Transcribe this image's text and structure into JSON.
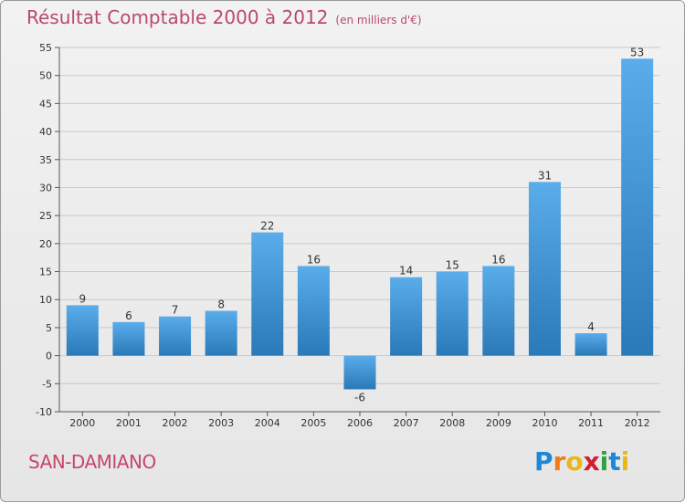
{
  "chart_data": {
    "type": "bar",
    "title": "Résultat Comptable 2000 à 2012",
    "subtitle": "(en milliers d'€)",
    "categories": [
      "2000",
      "2001",
      "2002",
      "2003",
      "2004",
      "2005",
      "2006",
      "2007",
      "2008",
      "2009",
      "2010",
      "2011",
      "2012"
    ],
    "values": [
      9,
      6,
      7,
      8,
      22,
      16,
      -6,
      14,
      15,
      16,
      31,
      4,
      53
    ],
    "value_labels": [
      "9",
      "6",
      "7",
      "8",
      "22",
      "16",
      "-6",
      "14",
      "15",
      "16",
      "31",
      "4",
      "53"
    ],
    "yticks": [
      -10,
      -5,
      0,
      5,
      10,
      15,
      20,
      25,
      30,
      35,
      40,
      45,
      50,
      55
    ],
    "ytick_labels": [
      "-10",
      "-5",
      "0",
      "5",
      "10",
      "15",
      "20",
      "25",
      "30",
      "35",
      "40",
      "45",
      "50",
      "55"
    ],
    "ylim": [
      -10,
      55
    ],
    "xlabel": "",
    "ylabel": "",
    "grid": true,
    "bar_color_top": "#5aacea",
    "bar_color_bottom": "#2a79b8"
  },
  "footer": {
    "commune": "SAN-DAMIANO",
    "logo_letters": [
      "P",
      "r",
      "o",
      "x",
      "i",
      "t",
      "i"
    ],
    "logo_colors": [
      "#1e88d8",
      "#f07b1a",
      "#e8b81a",
      "#d02030",
      "#30a040",
      "#1e88d8",
      "#e8b81a"
    ]
  }
}
